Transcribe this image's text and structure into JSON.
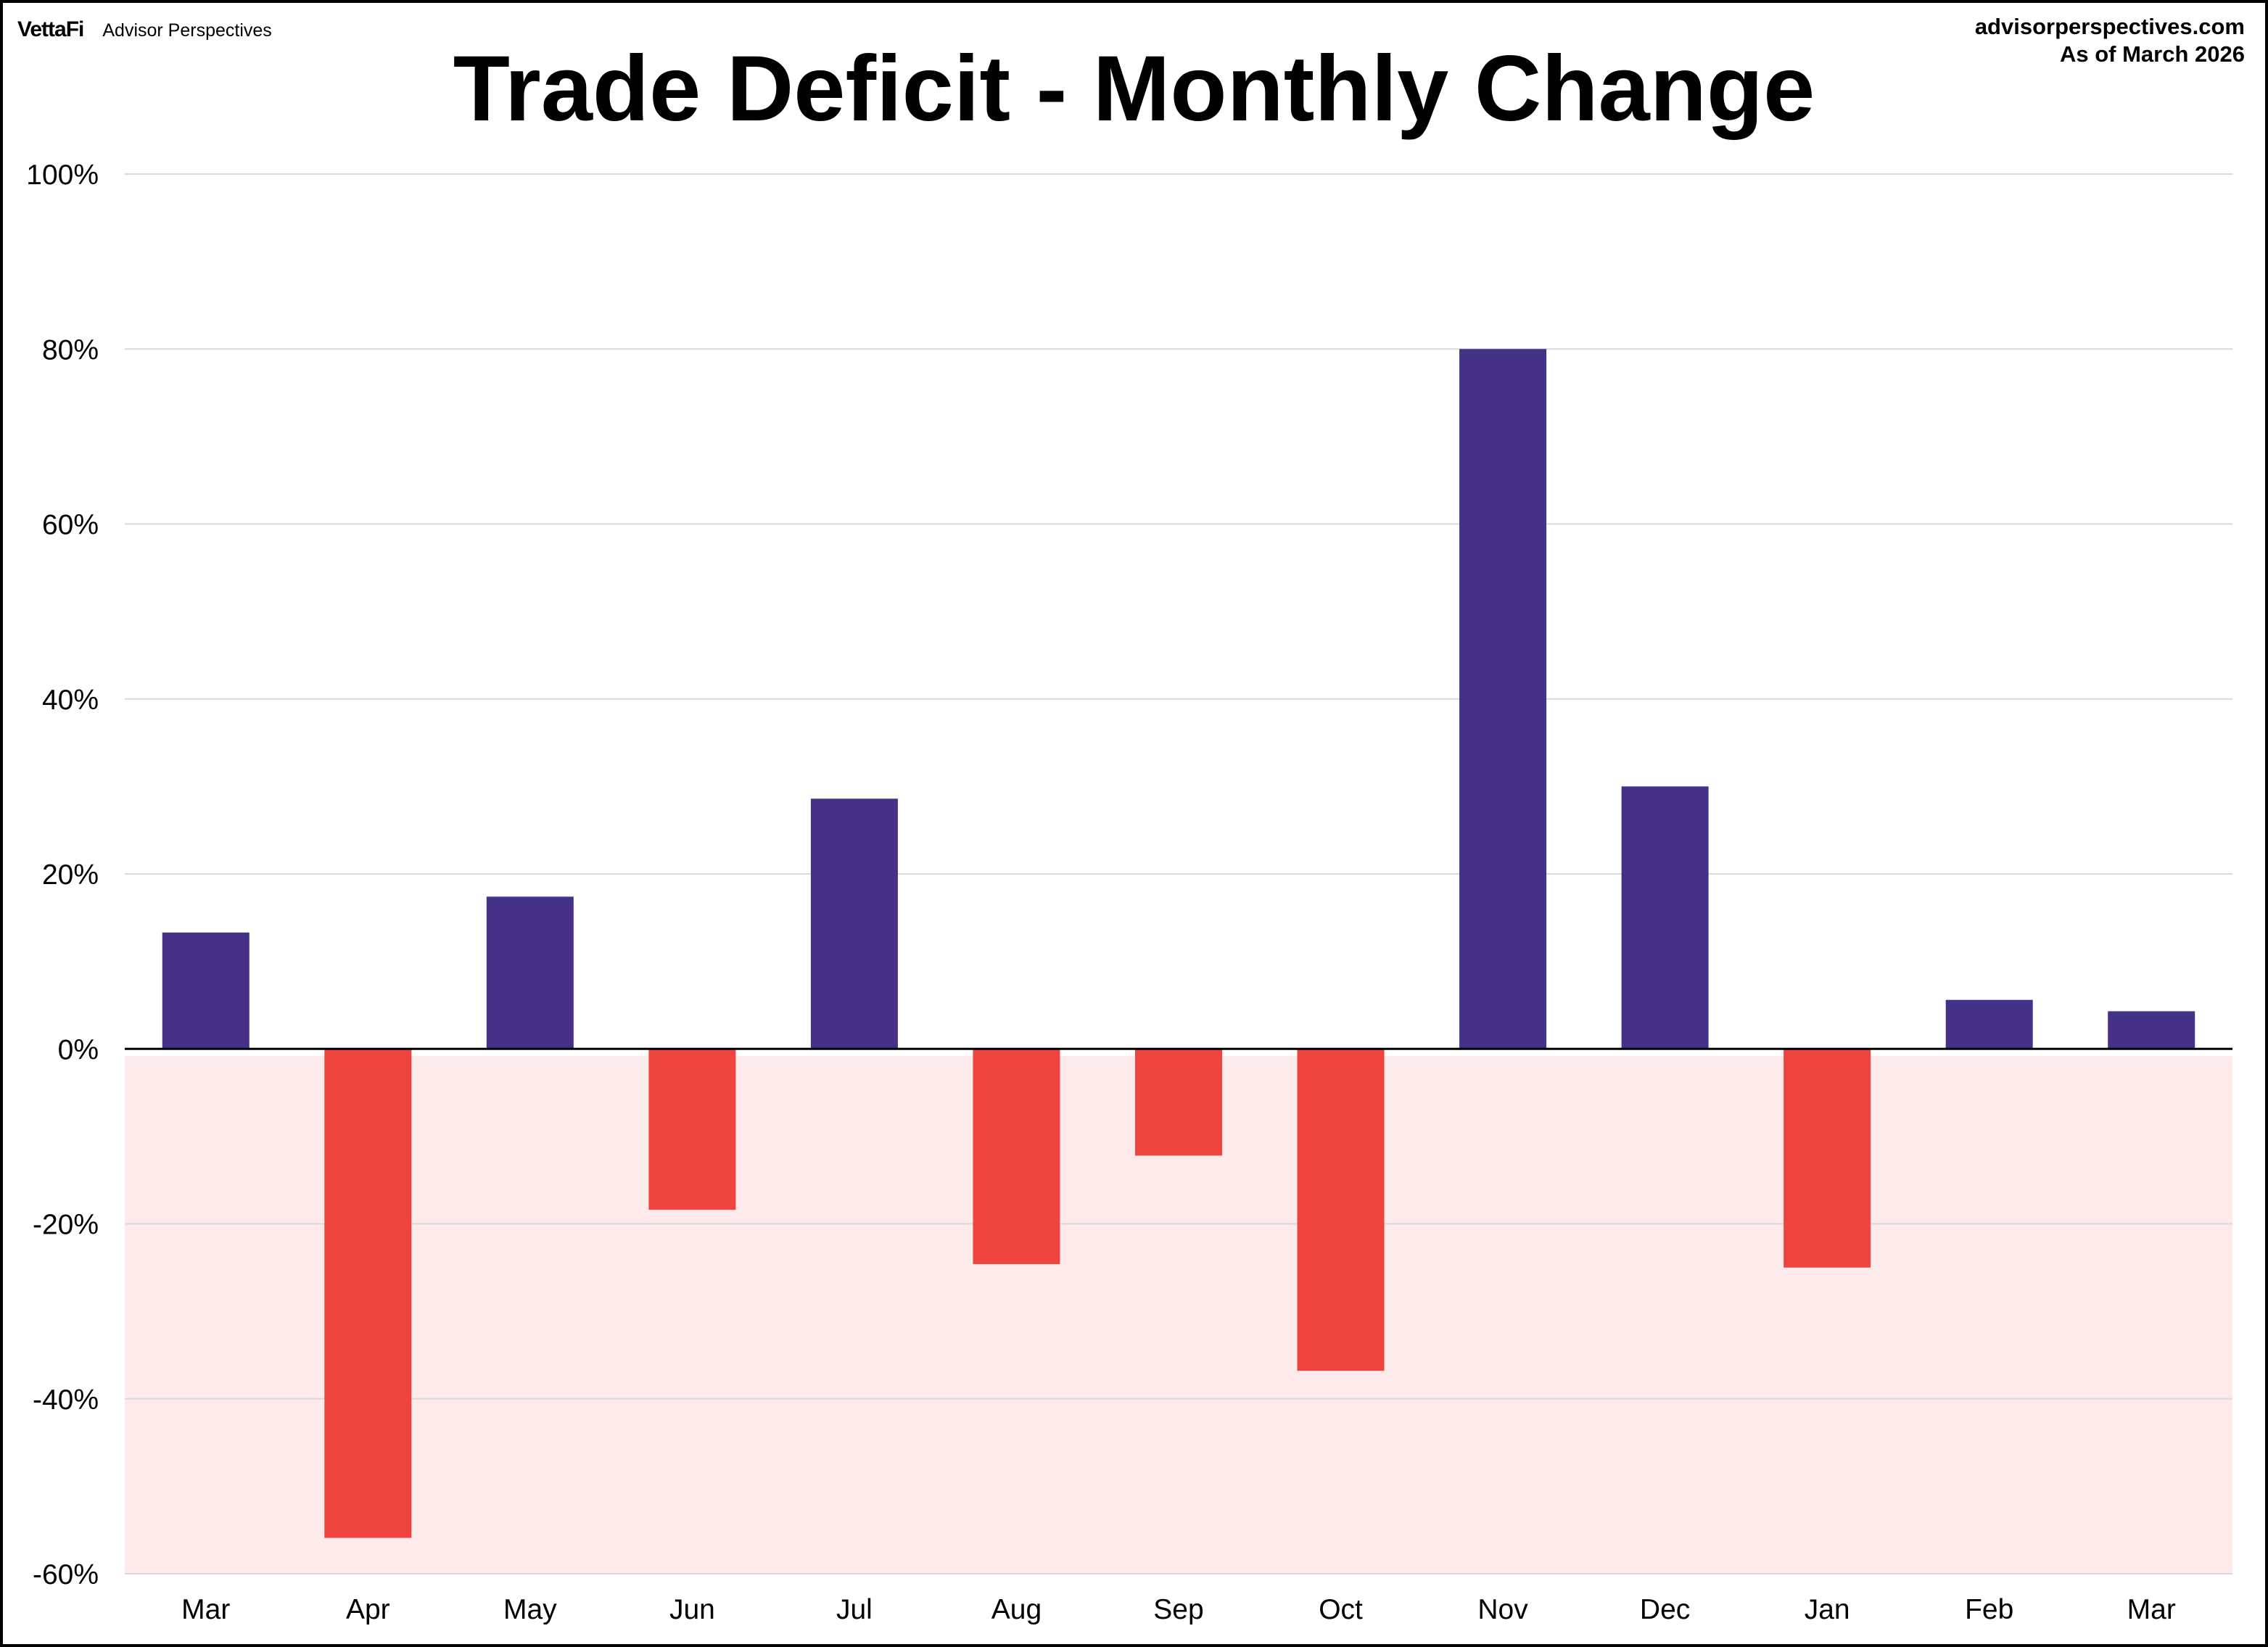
{
  "header": {
    "logo_brand": "VettaFi",
    "logo_name": "Advisor Perspectives",
    "source_site": "advisorperspectives.com",
    "as_of": "As of March 2026"
  },
  "colors": {
    "positive_bar": "#463188",
    "negative_bar": "#EF4340",
    "negative_region": "#FDEBEB",
    "gridline": "#D9D9D9",
    "zero_line": "#000000"
  },
  "chart_data": {
    "type": "bar",
    "title": "Trade Deficit - Monthly Change",
    "xlabel": "",
    "ylabel": "",
    "categories": [
      "Mar",
      "Apr",
      "May",
      "Jun",
      "Jul",
      "Aug",
      "Sep",
      "Oct",
      "Nov",
      "Dec",
      "Jan",
      "Feb",
      "Mar"
    ],
    "values": [
      13.3,
      -55.9,
      17.4,
      -18.4,
      28.6,
      -24.6,
      -12.2,
      -36.8,
      80.0,
      30.0,
      -25.0,
      5.6,
      4.3
    ],
    "unit": "%",
    "ylim": [
      -60,
      100
    ],
    "yticks": [
      100,
      80,
      60,
      40,
      20,
      0,
      -20,
      -40,
      -60
    ],
    "ytick_labels": [
      "100%",
      "80%",
      "60%",
      "40%",
      "20%",
      "0%",
      "-20%",
      "-40%",
      "-60%"
    ],
    "grid": true,
    "negative_region_shaded": true,
    "legend": "none"
  }
}
